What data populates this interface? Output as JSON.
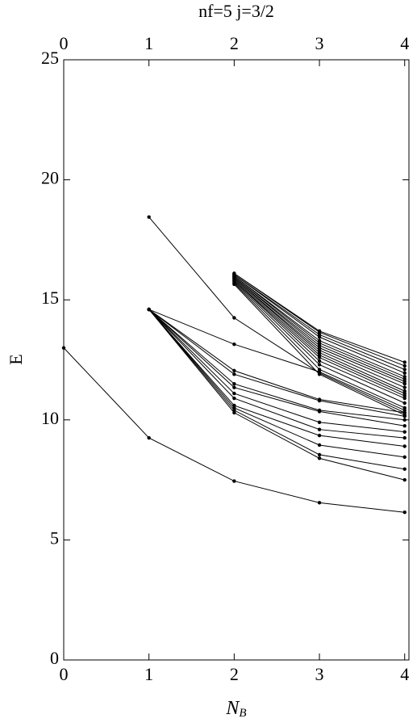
{
  "chart_data": {
    "type": "line",
    "title": "nf=5   j=3/2",
    "x_label": "N",
    "x_label_sub": "B",
    "y_label": "E",
    "x": [
      0,
      1,
      2,
      3,
      4
    ],
    "xlim": [
      0,
      4.05
    ],
    "xticks": [
      0,
      1,
      2,
      3,
      4
    ],
    "ylim": [
      0,
      25
    ],
    "yticks": [
      0,
      5,
      10,
      15,
      20,
      25
    ],
    "color": "#000000",
    "series": [
      {
        "values": [
          13.0,
          9.25,
          7.45,
          6.55,
          6.15
        ]
      },
      {
        "values": [
          null,
          18.45,
          14.25,
          11.95,
          10.3
        ]
      },
      {
        "values": [
          null,
          14.6,
          13.15,
          12.0,
          10.4
        ]
      },
      {
        "values": [
          null,
          14.6,
          12.05,
          10.85,
          10.3
        ]
      },
      {
        "values": [
          null,
          14.6,
          11.9,
          10.8,
          10.15
        ]
      },
      {
        "values": [
          null,
          14.6,
          11.5,
          10.4,
          10.0
        ]
      },
      {
        "values": [
          null,
          14.6,
          11.35,
          10.35,
          9.75
        ]
      },
      {
        "values": [
          null,
          14.6,
          11.1,
          9.9,
          9.5
        ]
      },
      {
        "values": [
          null,
          14.6,
          10.9,
          9.6,
          9.25
        ]
      },
      {
        "values": [
          null,
          14.6,
          10.6,
          9.35,
          8.9
        ]
      },
      {
        "values": [
          null,
          14.6,
          10.5,
          8.95,
          8.45
        ]
      },
      {
        "values": [
          null,
          14.6,
          10.4,
          8.55,
          7.95
        ]
      },
      {
        "values": [
          null,
          14.6,
          10.3,
          8.4,
          7.5
        ]
      },
      {
        "values": [
          null,
          null,
          15.65,
          11.9,
          10.2
        ]
      },
      {
        "values": [
          null,
          null,
          15.7,
          12.1,
          10.5
        ]
      },
      {
        "values": [
          null,
          null,
          15.75,
          12.3,
          10.7
        ]
      },
      {
        "values": [
          null,
          null,
          15.8,
          12.45,
          10.9
        ]
      },
      {
        "values": [
          null,
          null,
          15.8,
          12.6,
          11.0
        ]
      },
      {
        "values": [
          null,
          null,
          15.85,
          12.7,
          11.1
        ]
      },
      {
        "values": [
          null,
          null,
          15.9,
          12.8,
          11.2
        ]
      },
      {
        "values": [
          null,
          null,
          15.9,
          12.9,
          11.35
        ]
      },
      {
        "values": [
          null,
          null,
          15.95,
          13.0,
          11.5
        ]
      },
      {
        "values": [
          null,
          null,
          15.95,
          13.1,
          11.6
        ]
      },
      {
        "values": [
          null,
          null,
          16.0,
          13.2,
          11.7
        ]
      },
      {
        "values": [
          null,
          null,
          16.0,
          13.3,
          11.8
        ]
      },
      {
        "values": [
          null,
          null,
          16.05,
          13.45,
          11.95
        ]
      },
      {
        "values": [
          null,
          null,
          16.05,
          13.55,
          12.1
        ]
      },
      {
        "values": [
          null,
          null,
          16.1,
          13.65,
          12.25
        ]
      },
      {
        "values": [
          null,
          null,
          16.1,
          13.7,
          12.4
        ]
      }
    ]
  }
}
